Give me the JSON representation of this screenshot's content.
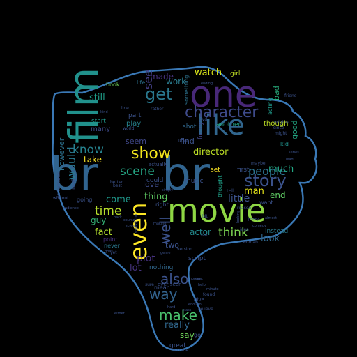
{
  "outline_color": "#3a78b5",
  "background_color": "#000000",
  "words": [
    {
      "text": "br",
      "color": "#31648f"
    },
    {
      "text": "br",
      "color": "#31648f"
    },
    {
      "text": "movie",
      "color": "#8fd744"
    },
    {
      "text": "one",
      "color": "#482878"
    },
    {
      "text": "film",
      "color": "#21918c"
    },
    {
      "text": "like",
      "color": "#31668e"
    },
    {
      "text": "even",
      "color": "#fde725"
    },
    {
      "text": "character",
      "color": "#3e4a89"
    },
    {
      "text": "story",
      "color": "#3b528b"
    },
    {
      "text": "get",
      "color": "#2a788e"
    },
    {
      "text": "show",
      "color": "#f2e51d"
    },
    {
      "text": "scene",
      "color": "#25a584"
    },
    {
      "text": "also",
      "color": "#3b528b"
    },
    {
      "text": "make",
      "color": "#4ac16d"
    },
    {
      "text": "see",
      "color": "#433e85"
    },
    {
      "text": "way",
      "color": "#33638d"
    },
    {
      "text": "time",
      "color": "#b5de2b"
    },
    {
      "text": "people",
      "color": "#2c728e"
    },
    {
      "text": "think",
      "color": "#7ad151"
    },
    {
      "text": "well",
      "color": "#3b528b"
    },
    {
      "text": "know",
      "color": "#26828e"
    },
    {
      "text": "would",
      "color": "#2a788e"
    },
    {
      "text": "really",
      "color": "#31688e"
    },
    {
      "text": "plot",
      "color": "#46327e"
    },
    {
      "text": "watch",
      "color": "#d8e219"
    },
    {
      "text": "much",
      "color": "#22a884"
    },
    {
      "text": "lot",
      "color": "#46337e"
    },
    {
      "text": "made",
      "color": "#46327e"
    },
    {
      "text": "work",
      "color": "#2a7b8e"
    },
    {
      "text": "director",
      "color": "#bddf26"
    },
    {
      "text": "thing",
      "color": "#5ec962"
    },
    {
      "text": "little",
      "color": "#3b528b"
    },
    {
      "text": "however",
      "color": "#2c718e"
    },
    {
      "text": "still",
      "color": "#1f9e89"
    },
    {
      "text": "find",
      "color": "#3b528b"
    },
    {
      "text": "love",
      "color": "#3e4c8a"
    },
    {
      "text": "seem",
      "color": "#3f4788"
    },
    {
      "text": "take",
      "color": "#fde725"
    },
    {
      "text": "come",
      "color": "#1f988b"
    },
    {
      "text": "fact",
      "color": "#b2dd2d"
    },
    {
      "text": "guy",
      "color": "#35b779"
    },
    {
      "text": "actor",
      "color": "#238a8d"
    },
    {
      "text": "two",
      "color": "#3b528b"
    },
    {
      "text": "man",
      "color": "#e5e419"
    },
    {
      "text": "end",
      "color": "#5ec962"
    },
    {
      "text": "look",
      "color": "#31688e"
    },
    {
      "text": "say",
      "color": "#6ece58"
    },
    {
      "text": "good",
      "color": "#22a884"
    },
    {
      "text": "bad",
      "color": "#29af7f"
    },
    {
      "text": "though",
      "color": "#bddf26"
    },
    {
      "text": "play",
      "color": "#26828e"
    },
    {
      "text": "many",
      "color": "#3e4989"
    },
    {
      "text": "start",
      "color": "#1f968b"
    },
    {
      "text": "part",
      "color": "#3b528b"
    },
    {
      "text": "life",
      "color": "#2c728e"
    },
    {
      "text": "book",
      "color": "#6ccd5a"
    },
    {
      "text": "girl",
      "color": "#c0df25"
    },
    {
      "text": "funny",
      "color": "#414487"
    },
    {
      "text": "shot",
      "color": "#31688e"
    },
    {
      "text": "set",
      "color": "#fde725"
    },
    {
      "text": "first",
      "color": "#3b528b"
    },
    {
      "text": "want",
      "color": "#3b528b"
    },
    {
      "text": "kid",
      "color": "#20928c"
    },
    {
      "text": "acting",
      "color": "#1f9a8a"
    },
    {
      "text": "nothing",
      "color": "#31688e"
    },
    {
      "text": "point",
      "color": "#46327e"
    },
    {
      "text": "never",
      "color": "#2a788e"
    },
    {
      "text": "instead",
      "color": "#2a7b8e"
    },
    {
      "text": "script",
      "color": "#3b528b"
    },
    {
      "text": "great",
      "color": "#3b528b"
    },
    {
      "text": "real",
      "color": "#3b528b"
    },
    {
      "text": "going",
      "color": "#3b528b"
    },
    {
      "text": "could",
      "color": "#3b528b"
    },
    {
      "text": "music",
      "color": "#3b528b"
    },
    {
      "text": "thought",
      "color": "#1fa088"
    },
    {
      "text": "tell",
      "color": "#3b528b"
    },
    {
      "text": "right",
      "color": "#3b528b"
    },
    {
      "text": "actually",
      "color": "#3b528b"
    },
    {
      "text": "something",
      "color": "#2c728e"
    },
    {
      "text": "another",
      "color": "#22a884"
    },
    {
      "text": "performance",
      "color": "#3b528b"
    },
    {
      "text": "without",
      "color": "#3b528b"
    },
    {
      "text": "better",
      "color": "#3b528b"
    },
    {
      "text": "best",
      "color": "#3b528b"
    },
    {
      "text": "version",
      "color": "#3b528b"
    },
    {
      "text": "fan",
      "color": "#3b528b"
    },
    {
      "text": "mean",
      "color": "#3b528b"
    },
    {
      "text": "yet",
      "color": "#3b528b"
    },
    {
      "text": "found",
      "color": "#3b528b"
    },
    {
      "text": "give",
      "color": "#3b528b"
    },
    {
      "text": "sure",
      "color": "#3b528b"
    },
    {
      "text": "ever seen",
      "color": "#3b528b"
    },
    {
      "text": "go",
      "color": "#3b528b"
    },
    {
      "text": "believe",
      "color": "#3b528b"
    },
    {
      "text": "become",
      "color": "#3b528b"
    },
    {
      "text": "enough",
      "color": "#3b528b"
    },
    {
      "text": "back",
      "color": "#3b528b"
    },
    {
      "text": "course",
      "color": "#3b528b"
    },
    {
      "text": "world",
      "color": "#3b528b"
    },
    {
      "text": "rather",
      "color": "#3b528b"
    },
    {
      "text": "line",
      "color": "#3b528b"
    },
    {
      "text": "least",
      "color": "#3b528b"
    },
    {
      "text": "since",
      "color": "#3b528b"
    },
    {
      "text": "might",
      "color": "#3b528b"
    },
    {
      "text": "original",
      "color": "#3b528b"
    },
    {
      "text": "friend",
      "color": "#3b528b"
    },
    {
      "text": "maybe",
      "color": "#3b528b"
    },
    {
      "text": "dvd",
      "color": "#3b528b"
    },
    {
      "text": "reason",
      "color": "#3b528b"
    },
    {
      "text": "idea",
      "color": "#3b528b"
    },
    {
      "text": "woman",
      "color": "#3b528b"
    },
    {
      "text": "ending",
      "color": "#3b528b"
    },
    {
      "text": "kind",
      "color": "#3b528b"
    },
    {
      "text": "goes",
      "color": "#3b528b"
    },
    {
      "text": "bit",
      "color": "#3b528b"
    },
    {
      "text": "looking",
      "color": "#3b528b"
    },
    {
      "text": "simply",
      "color": "#3b528b"
    },
    {
      "text": "either",
      "color": "#3b528b"
    },
    {
      "text": "role",
      "color": "#3b528b"
    },
    {
      "text": "pretty",
      "color": "#3b528b"
    },
    {
      "text": "audience",
      "color": "#3b528b"
    },
    {
      "text": "making",
      "color": "#3b528b"
    },
    {
      "text": "moment",
      "color": "#3b528b"
    },
    {
      "text": "help",
      "color": "#3b528b"
    },
    {
      "text": "comedy",
      "color": "#3b528b"
    },
    {
      "text": "everything",
      "color": "#3b528b"
    },
    {
      "text": "screen",
      "color": "#3b528b"
    },
    {
      "text": "minute",
      "color": "#3b528b"
    },
    {
      "text": "lead",
      "color": "#3b528b"
    },
    {
      "text": "series",
      "color": "#3b528b"
    },
    {
      "text": "almost",
      "color": "#3b528b"
    },
    {
      "text": "genre",
      "color": "#3b528b"
    },
    {
      "text": "hard",
      "color": "#3b528b"
    },
    {
      "text": "class",
      "color": "#3b528b"
    }
  ]
}
